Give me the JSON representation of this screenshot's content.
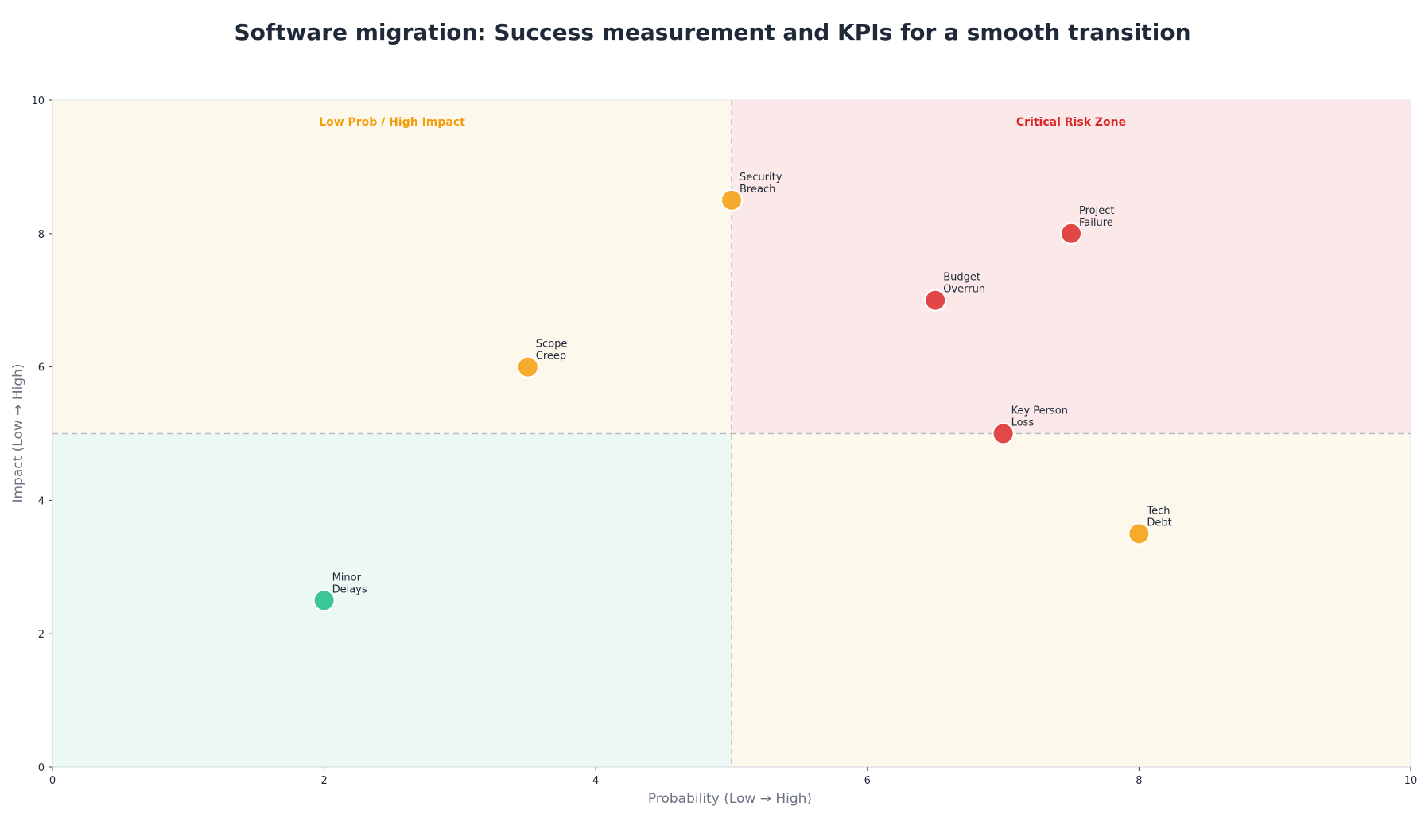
{
  "chart_data": {
    "type": "scatter",
    "title": "Software migration: Success measurement and KPIs for a smooth transition",
    "xlabel": "Probability (Low → High)",
    "ylabel": "Impact (Low → High)",
    "xlim": [
      0,
      10
    ],
    "ylim": [
      0,
      10
    ],
    "xticks": [
      "0",
      "2",
      "4",
      "6",
      "8",
      "10"
    ],
    "yticks": [
      "0",
      "2",
      "4",
      "6",
      "8",
      "10"
    ],
    "grid": false,
    "thresholds": {
      "x": 5,
      "y": 5
    },
    "zones": [
      {
        "id": "top-left",
        "label": "Low Prob / High Impact",
        "color": "#fdf8ec",
        "label_color": "#f29e0b"
      },
      {
        "id": "top-right",
        "label": "Critical Risk Zone",
        "color": "#fbe8e8",
        "label_color": "#dc2626"
      },
      {
        "id": "bottom-left",
        "label": "",
        "color": "#ecf8f3",
        "label_color": "#10b981"
      },
      {
        "id": "bottom-right",
        "label": "",
        "color": "#fdf8ec",
        "label_color": "#f29e0b"
      }
    ],
    "points": [
      {
        "label_lines": [
          "Security",
          "Breach"
        ],
        "x": 5.0,
        "y": 8.5,
        "color": "#f5a623"
      },
      {
        "label_lines": [
          "Project",
          "Failure"
        ],
        "x": 7.5,
        "y": 8.0,
        "color": "#e03e3e"
      },
      {
        "label_lines": [
          "Budget",
          "Overrun"
        ],
        "x": 6.5,
        "y": 7.0,
        "color": "#e03e3e"
      },
      {
        "label_lines": [
          "Scope",
          "Creep"
        ],
        "x": 3.5,
        "y": 6.0,
        "color": "#f5a623"
      },
      {
        "label_lines": [
          "Key Person",
          "Loss"
        ],
        "x": 7.0,
        "y": 5.0,
        "color": "#e03e3e"
      },
      {
        "label_lines": [
          "Tech",
          "Debt"
        ],
        "x": 8.0,
        "y": 3.5,
        "color": "#f5a623"
      },
      {
        "label_lines": [
          "Minor",
          "Delays"
        ],
        "x": 2.0,
        "y": 2.5,
        "color": "#34c38f"
      }
    ]
  }
}
